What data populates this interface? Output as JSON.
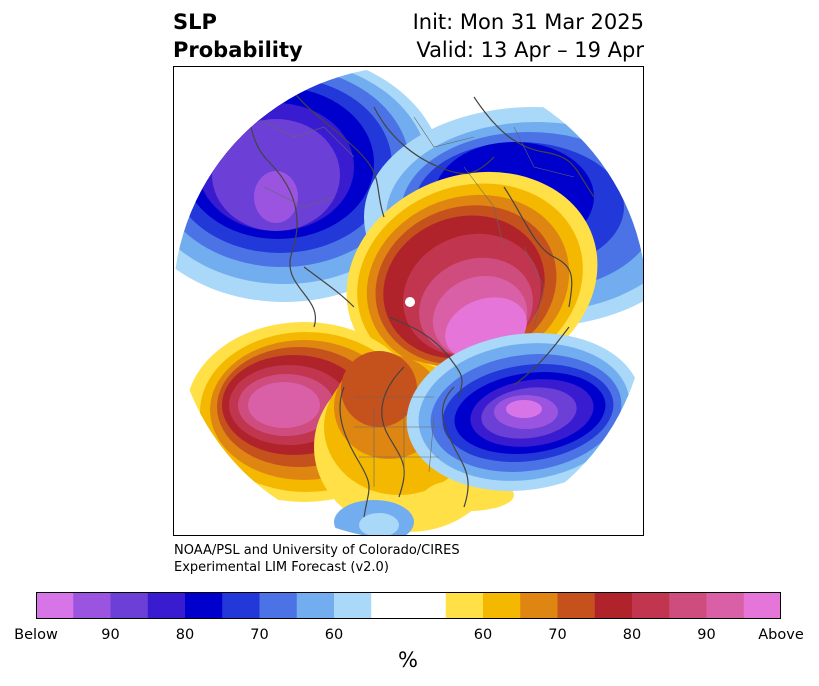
{
  "header": {
    "title_line1": "SLP",
    "title_line2": "Probability",
    "init_text": "Init: Mon 31 Mar 2025",
    "valid_text": "Valid: 13 Apr – 19 Apr"
  },
  "credit": {
    "line1": "NOAA/PSL and University of Colorado/CIRES",
    "line2": "Experimental LIM Forecast (v2.0)"
  },
  "colorbar": {
    "colors": [
      "#d775e8",
      "#9b54e0",
      "#6c3fd6",
      "#3a1cd0",
      "#0000cc",
      "#2238d8",
      "#4b73e6",
      "#72aeef",
      "#a9d8f9",
      "#ffffff",
      "#ffffff",
      "#ffe047",
      "#f4b800",
      "#df8512",
      "#c5511c",
      "#b1232a",
      "#c1354f",
      "#cf4d7e",
      "#d95fa6",
      "#e575d8"
    ],
    "tick_labels": [
      "Below",
      "90",
      "80",
      "70",
      "60",
      "60",
      "70",
      "80",
      "90",
      "Above"
    ],
    "unit": "%"
  },
  "map": {
    "projection": "north-polar-stereographic",
    "features": [
      "coastlines",
      "country-borders",
      "state-borders"
    ]
  }
}
